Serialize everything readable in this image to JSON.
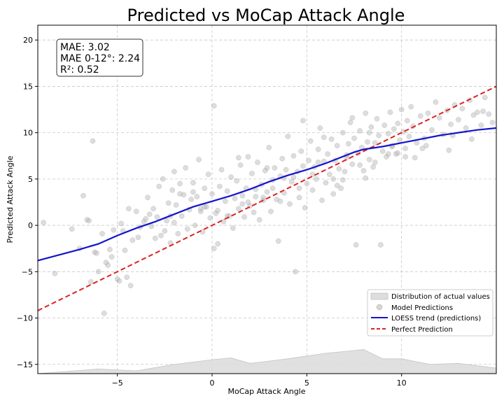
{
  "chart_data": {
    "type": "scatter",
    "title": "Predicted vs MoCap Attack Angle",
    "xlabel": "MoCap Attack Angle",
    "ylabel": "Predicted Attack Angle",
    "xlim": [
      -9.2,
      15.0
    ],
    "ylim": [
      -16.0,
      21.6
    ],
    "xticks": [
      -5,
      0,
      5,
      10
    ],
    "yticks": [
      -15,
      -10,
      -5,
      0,
      5,
      10,
      15,
      20
    ],
    "grid": true,
    "stats_box": [
      "MAE: 3.02",
      "MAE 0-12°: 2.24",
      "R²: 0.52"
    ],
    "legend": {
      "position": "lower-right",
      "entries": [
        {
          "label": "Distribution of actual values",
          "kind": "area",
          "color": "#cccccc"
        },
        {
          "label": "Model Predictions",
          "kind": "marker",
          "color": "#bbbbbb"
        },
        {
          "label": "LOESS trend (predictions)",
          "kind": "line",
          "color": "#1414cc"
        },
        {
          "label": "Perfect Prediction",
          "kind": "dashed",
          "color": "#dd2222"
        }
      ]
    },
    "perfect_prediction": {
      "x": [
        -9.2,
        15.0
      ],
      "y": [
        -9.2,
        15.0
      ]
    },
    "loess": {
      "x": [
        -9.2,
        -7.0,
        -6.0,
        -5.0,
        -4.0,
        -3.0,
        -2.0,
        -1.0,
        0.0,
        1.0,
        2.0,
        3.0,
        4.0,
        5.0,
        6.0,
        7.0,
        7.5,
        8.0,
        9.0,
        10.0,
        11.0,
        12.0,
        13.0,
        14.0,
        15.0
      ],
      "y": [
        -3.8,
        -2.6,
        -2.0,
        -1.1,
        -0.3,
        0.4,
        1.2,
        2.0,
        2.6,
        3.2,
        3.9,
        4.7,
        5.4,
        6.0,
        6.7,
        7.5,
        7.9,
        8.2,
        8.5,
        8.9,
        9.3,
        9.7,
        10.0,
        10.3,
        10.5
      ]
    },
    "distribution": {
      "x": [
        -9.2,
        -6.0,
        -4.0,
        -2.0,
        0.0,
        1.0,
        2.0,
        4.0,
        6.0,
        8.0,
        9.0,
        10.0,
        11.5,
        13.0,
        15.0
      ],
      "y": [
        -16.0,
        -15.5,
        -15.7,
        -15.0,
        -14.5,
        -14.3,
        -14.9,
        -14.4,
        -13.8,
        -13.4,
        -14.4,
        -14.4,
        -15.0,
        -14.9,
        -15.4
      ]
    },
    "predictions": {
      "x": [
        -8.9,
        -8.3,
        -7.4,
        -7.0,
        -6.8,
        -6.6,
        -6.4,
        -6.3,
        -6.2,
        -6.0,
        -5.8,
        -5.7,
        -5.5,
        -5.4,
        -5.2,
        -5.0,
        -4.9,
        -4.8,
        -4.6,
        -4.5,
        -4.3,
        -4.2,
        -4.0,
        -3.9,
        -3.8,
        -3.6,
        -3.4,
        -3.3,
        -3.1,
        -3.0,
        -2.9,
        -2.8,
        -2.7,
        -2.6,
        -2.5,
        -2.4,
        -2.3,
        -2.2,
        -2.1,
        -2.0,
        -1.9,
        -1.8,
        -1.7,
        -1.6,
        -1.5,
        -1.4,
        -1.3,
        -1.2,
        -1.1,
        -1.0,
        -0.9,
        -0.8,
        -0.7,
        -0.6,
        -0.5,
        -0.4,
        -0.3,
        -0.2,
        -0.1,
        0.0,
        0.1,
        0.2,
        0.3,
        0.4,
        0.5,
        0.6,
        0.7,
        0.8,
        0.9,
        1.0,
        1.1,
        1.2,
        1.3,
        1.4,
        1.5,
        1.6,
        1.7,
        1.8,
        1.9,
        2.0,
        2.1,
        2.2,
        2.3,
        2.4,
        2.5,
        2.6,
        2.7,
        2.8,
        2.9,
        3.0,
        3.1,
        3.2,
        3.3,
        3.4,
        3.5,
        3.6,
        3.7,
        3.8,
        3.9,
        4.0,
        4.1,
        4.2,
        4.3,
        4.4,
        4.5,
        4.6,
        4.7,
        4.8,
        4.9,
        5.0,
        5.1,
        5.2,
        5.3,
        5.4,
        5.5,
        5.6,
        5.7,
        5.8,
        5.9,
        6.0,
        6.1,
        6.2,
        6.3,
        6.4,
        6.5,
        6.6,
        6.7,
        6.8,
        6.9,
        7.0,
        7.1,
        7.2,
        7.3,
        7.4,
        7.5,
        7.6,
        7.7,
        7.8,
        7.9,
        8.0,
        8.1,
        8.2,
        8.3,
        8.4,
        8.5,
        8.6,
        8.7,
        8.8,
        8.9,
        9.0,
        9.1,
        9.2,
        9.3,
        9.4,
        9.5,
        9.6,
        9.7,
        9.8,
        9.9,
        10.0,
        10.1,
        10.2,
        10.3,
        10.4,
        10.5,
        10.6,
        10.8,
        11.0,
        11.2,
        11.4,
        11.6,
        11.8,
        12.0,
        12.2,
        12.4,
        12.6,
        12.8,
        13.0,
        13.2,
        13.4,
        13.6,
        13.8,
        14.0,
        14.2,
        14.4,
        14.6,
        14.8,
        -5.6,
        -6.1,
        -4.7,
        -3.5,
        -2.2,
        -1.0,
        0.3,
        1.6,
        2.7,
        3.8,
        4.6,
        5.3,
        6.4,
        7.1,
        7.8,
        8.6,
        9.3,
        10.2,
        11.3,
        12.5,
        13.7,
        -6.5,
        -5.3,
        -4.4,
        -3.2,
        -2.0,
        -0.6,
        0.8,
        2.3,
        3.2,
        4.3,
        5.6,
        6.9,
        8.3,
        9.8,
        11.1,
        12.7,
        14.3,
        0.1,
        1.4,
        3.6,
        4.8,
        6.6,
        8.1,
        10.7,
        -1.7,
        -0.4,
        1.9,
        2.9,
        5.9,
        7.4,
        9.5
      ],
      "y": [
        0.3,
        -5.2,
        -0.4,
        -2.5,
        3.2,
        0.6,
        -6.1,
        9.1,
        -2.9,
        -5.0,
        -0.9,
        -9.5,
        -4.3,
        -2.6,
        -0.5,
        -5.8,
        -6.0,
        0.2,
        -2.7,
        -5.6,
        -6.5,
        -1.6,
        1.5,
        -1.3,
        -0.2,
        0.4,
        3.0,
        1.2,
        1.8,
        -1.4,
        0.9,
        4.2,
        -1.1,
        5.0,
        -0.6,
        0.5,
        2.4,
        -1.9,
        3.8,
        0.3,
        2.2,
        -0.9,
        4.5,
        1.0,
        3.3,
        6.2,
        -0.4,
        1.7,
        2.8,
        4.6,
        0.0,
        3.1,
        7.1,
        1.5,
        -0.7,
        4.0,
        2.0,
        5.5,
        0.8,
        3.4,
        12.9,
        1.3,
        -2.0,
        4.2,
        6.0,
        0.4,
        2.6,
        3.7,
        1.0,
        5.2,
        -0.3,
        2.9,
        4.8,
        1.8,
        6.5,
        3.2,
        0.9,
        4.0,
        7.4,
        2.1,
        5.6,
        1.4,
        3.9,
        6.8,
        0.6,
        4.4,
        2.7,
        5.9,
        3.6,
        8.4,
        1.5,
        4.9,
        6.2,
        2.8,
        -1.7,
        5.3,
        7.2,
        3.5,
        6.0,
        9.6,
        2.3,
        4.7,
        7.5,
        -5.0,
        5.8,
        3.0,
        8.0,
        6.4,
        1.9,
        4.5,
        7.0,
        9.1,
        3.8,
        6.3,
        5.0,
        8.2,
        10.5,
        2.7,
        6.9,
        4.6,
        7.7,
        5.5,
        9.3,
        3.4,
        7.0,
        8.6,
        6.1,
        4.0,
        10.0,
        5.8,
        7.3,
        8.8,
        11.1,
        6.6,
        9.4,
        -2.1,
        7.8,
        10.2,
        8.4,
        5.9,
        12.1,
        9.0,
        7.1,
        10.6,
        6.3,
        8.9,
        11.5,
        9.7,
        -2.1,
        8.0,
        10.8,
        7.4,
        9.9,
        12.2,
        8.6,
        10.4,
        7.7,
        11.0,
        9.2,
        12.5,
        10.1,
        8.3,
        11.3,
        9.6,
        12.8,
        10.7,
        8.9,
        11.8,
        9.4,
        12.1,
        10.3,
        13.3,
        11.6,
        9.8,
        12.4,
        10.9,
        13.0,
        11.4,
        12.6,
        10.5,
        13.5,
        11.9,
        12.2,
        10.8,
        13.8,
        12.0,
        11.1,
        -4.0,
        -3.0,
        -0.6,
        0.7,
        1.0,
        3.6,
        1.6,
        2.3,
        3.0,
        5.1,
        4.0,
        5.5,
        5.0,
        7.6,
        6.5,
        6.8,
        7.7,
        7.4,
        8.6,
        8.1,
        9.3,
        0.5,
        -3.4,
        1.8,
        -0.1,
        5.8,
        1.8,
        1.0,
        3.1,
        4.0,
        5.2,
        6.8,
        4.9,
        10.0,
        7.8,
        8.3,
        9.7,
        12.3,
        -2.5,
        7.3,
        2.6,
        11.3,
        4.3,
        5.1,
        7.3,
        3.4,
        2.0,
        2.5,
        6.2,
        9.5,
        11.6,
        8.5
      ]
    }
  }
}
